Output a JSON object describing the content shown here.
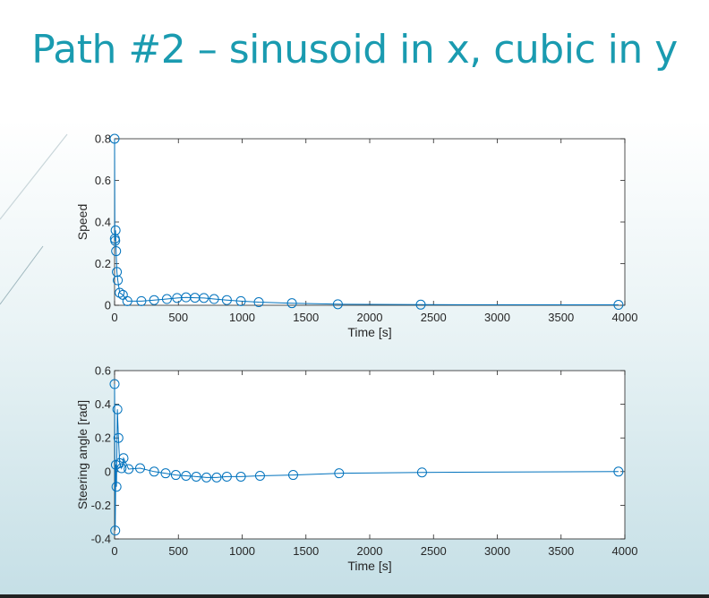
{
  "title": "Path #2 – sinusoid in x, cubic in y",
  "colors": {
    "title": "#1a9bb0",
    "series": "#0072bd"
  },
  "chart_data": [
    {
      "type": "line",
      "marker": "circle",
      "xlabel": "Time [s]",
      "ylabel": "Speed",
      "xlim": [
        0,
        4000
      ],
      "ylim": [
        0,
        0.8
      ],
      "xticks": [
        0,
        500,
        1000,
        1500,
        2000,
        2500,
        3000,
        3500,
        4000
      ],
      "yticks": [
        0,
        0.2,
        0.4,
        0.6,
        0.8
      ],
      "xtick_labels": [
        "0",
        "500",
        "1000",
        "1500",
        "2000",
        "2500",
        "3000",
        "3500",
        "4000"
      ],
      "ytick_labels": [
        "0",
        "0.2",
        "0.4",
        "0.6",
        "0.8"
      ],
      "x": [
        0,
        2,
        5,
        8,
        12,
        18,
        25,
        40,
        65,
        100,
        210,
        310,
        410,
        490,
        560,
        630,
        700,
        780,
        880,
        990,
        1130,
        1390,
        1750,
        2400,
        3950
      ],
      "y": [
        0.8,
        0.32,
        0.31,
        0.36,
        0.26,
        0.16,
        0.12,
        0.06,
        0.05,
        0.02,
        0.02,
        0.025,
        0.03,
        0.035,
        0.038,
        0.036,
        0.035,
        0.03,
        0.025,
        0.02,
        0.015,
        0.01,
        0.005,
        0.003,
        0.002
      ],
      "grid": false
    },
    {
      "type": "line",
      "marker": "circle",
      "xlabel": "Time [s]",
      "ylabel": "Steering angle [rad]",
      "xlim": [
        0,
        4000
      ],
      "ylim": [
        -0.4,
        0.6
      ],
      "xticks": [
        0,
        500,
        1000,
        1500,
        2000,
        2500,
        3000,
        3500,
        4000
      ],
      "yticks": [
        -0.4,
        -0.2,
        0,
        0.2,
        0.4,
        0.6
      ],
      "xtick_labels": [
        "0",
        "500",
        "1000",
        "1500",
        "2000",
        "2500",
        "3000",
        "3500",
        "4000"
      ],
      "ytick_labels": [
        "-0.4",
        "-0.2",
        "0",
        "0.2",
        "0.4",
        "0.6"
      ],
      "x": [
        0,
        5,
        10,
        15,
        22,
        30,
        40,
        55,
        70,
        110,
        200,
        310,
        400,
        480,
        560,
        640,
        720,
        800,
        880,
        990,
        1140,
        1400,
        1760,
        2410,
        3950
      ],
      "y": [
        0.52,
        -0.35,
        0.04,
        -0.09,
        0.37,
        0.2,
        0.05,
        0.02,
        0.08,
        0.015,
        0.02,
        0.0,
        -0.01,
        -0.02,
        -0.025,
        -0.03,
        -0.035,
        -0.035,
        -0.03,
        -0.03,
        -0.025,
        -0.02,
        -0.01,
        -0.005,
        0.0
      ],
      "grid": false
    }
  ]
}
